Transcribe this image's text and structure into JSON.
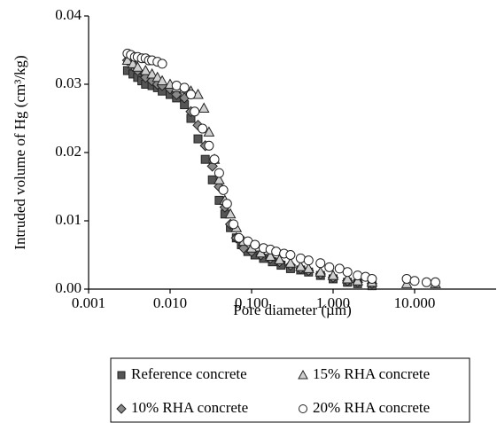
{
  "chart_data": {
    "type": "scatter",
    "xscale": "log",
    "x_label": "Pore diameter (µm)",
    "y_label": "Intruded volume of Hg (cm³/kg)",
    "xlim": [
      0.001,
      100
    ],
    "xticks": [
      {
        "value": 0.001,
        "label": "0.001"
      },
      {
        "value": 0.01,
        "label": "0.010"
      },
      {
        "value": 0.1,
        "label": "0.100"
      },
      {
        "value": 1,
        "label": "1.000"
      },
      {
        "value": 10,
        "label": "10.000"
      }
    ],
    "ylim": [
      0,
      0.04
    ],
    "yticks": [
      {
        "value": 0,
        "label": "0.00"
      },
      {
        "value": 0.01,
        "label": "0.01"
      },
      {
        "value": 0.02,
        "label": "0.02"
      },
      {
        "value": 0.03,
        "label": "0.03"
      },
      {
        "value": 0.04,
        "label": "0.04"
      }
    ],
    "legend": "bottom",
    "series": [
      {
        "name": "Reference concrete",
        "color": "#555555",
        "marker": "square",
        "x": [
          0.003,
          0.0035,
          0.004,
          0.0045,
          0.005,
          0.006,
          0.007,
          0.008,
          0.01,
          0.012,
          0.015,
          0.018,
          0.022,
          0.027,
          0.033,
          0.04,
          0.047,
          0.055,
          0.065,
          0.075,
          0.09,
          0.11,
          0.14,
          0.18,
          0.23,
          0.3,
          0.4,
          0.5,
          0.7,
          1.0,
          1.5,
          2.0,
          3.0
        ],
        "values": [
          0.032,
          0.0315,
          0.031,
          0.0305,
          0.03,
          0.0298,
          0.0295,
          0.029,
          0.0285,
          0.028,
          0.027,
          0.025,
          0.022,
          0.019,
          0.016,
          0.013,
          0.011,
          0.009,
          0.0075,
          0.0065,
          0.0055,
          0.005,
          0.0045,
          0.004,
          0.0035,
          0.003,
          0.0028,
          0.0025,
          0.002,
          0.0015,
          0.001,
          0.0008,
          0.0005
        ]
      },
      {
        "name": "10% RHA concrete",
        "color": "#8a8a8a",
        "marker": "diamond",
        "x": [
          0.003,
          0.0035,
          0.004,
          0.005,
          0.006,
          0.007,
          0.008,
          0.01,
          0.012,
          0.015,
          0.018,
          0.022,
          0.027,
          0.033,
          0.04,
          0.047,
          0.055,
          0.065,
          0.08,
          0.1,
          0.13,
          0.17,
          0.22,
          0.3,
          0.4,
          0.5,
          0.7,
          1.0,
          1.5,
          2.0,
          3.0
        ],
        "values": [
          0.0335,
          0.033,
          0.032,
          0.031,
          0.0305,
          0.03,
          0.0298,
          0.0293,
          0.0285,
          0.028,
          0.026,
          0.024,
          0.021,
          0.018,
          0.015,
          0.012,
          0.0095,
          0.0075,
          0.006,
          0.0055,
          0.005,
          0.0045,
          0.004,
          0.0035,
          0.003,
          0.0027,
          0.0022,
          0.0017,
          0.0012,
          0.001,
          0.0008
        ]
      },
      {
        "name": "15% RHA concrete",
        "color": "#d0d0d0",
        "marker": "triangle",
        "x": [
          0.003,
          0.0035,
          0.004,
          0.005,
          0.006,
          0.007,
          0.008,
          0.01,
          0.012,
          0.015,
          0.018,
          0.022,
          0.026,
          0.03,
          0.035,
          0.04,
          0.047,
          0.055,
          0.065,
          0.08,
          0.1,
          0.13,
          0.17,
          0.22,
          0.3,
          0.4,
          0.5,
          0.7,
          1.0,
          1.5,
          2.0,
          3.0,
          8.0,
          18.0
        ],
        "values": [
          0.0335,
          0.033,
          0.0325,
          0.032,
          0.0315,
          0.031,
          0.0305,
          0.03,
          0.0295,
          0.0293,
          0.029,
          0.0285,
          0.0265,
          0.023,
          0.019,
          0.016,
          0.013,
          0.011,
          0.009,
          0.007,
          0.006,
          0.0053,
          0.0048,
          0.0043,
          0.0038,
          0.0033,
          0.003,
          0.0025,
          0.002,
          0.0015,
          0.0012,
          0.001,
          0.0008,
          0.0008
        ]
      },
      {
        "name": "20% RHA concrete",
        "color": "#ffffff",
        "marker": "circle",
        "x": [
          0.003,
          0.0033,
          0.0037,
          0.004,
          0.0045,
          0.005,
          0.0055,
          0.006,
          0.007,
          0.008,
          0.012,
          0.015,
          0.018,
          0.02,
          0.025,
          0.03,
          0.035,
          0.04,
          0.045,
          0.05,
          0.06,
          0.07,
          0.09,
          0.11,
          0.14,
          0.17,
          0.2,
          0.25,
          0.3,
          0.4,
          0.5,
          0.7,
          0.9,
          1.2,
          1.5,
          2.0,
          2.5,
          3.0,
          8.0,
          10.0,
          14.0,
          18.0
        ],
        "values": [
          0.0345,
          0.0343,
          0.034,
          0.034,
          0.0338,
          0.0338,
          0.0335,
          0.0335,
          0.0333,
          0.033,
          0.0298,
          0.0295,
          0.0285,
          0.026,
          0.0235,
          0.021,
          0.019,
          0.017,
          0.0145,
          0.0125,
          0.0095,
          0.0075,
          0.007,
          0.0065,
          0.006,
          0.0058,
          0.0055,
          0.0052,
          0.005,
          0.0045,
          0.0042,
          0.0038,
          0.0032,
          0.003,
          0.0025,
          0.002,
          0.0018,
          0.0015,
          0.0015,
          0.0012,
          0.001,
          0.001
        ]
      }
    ]
  }
}
